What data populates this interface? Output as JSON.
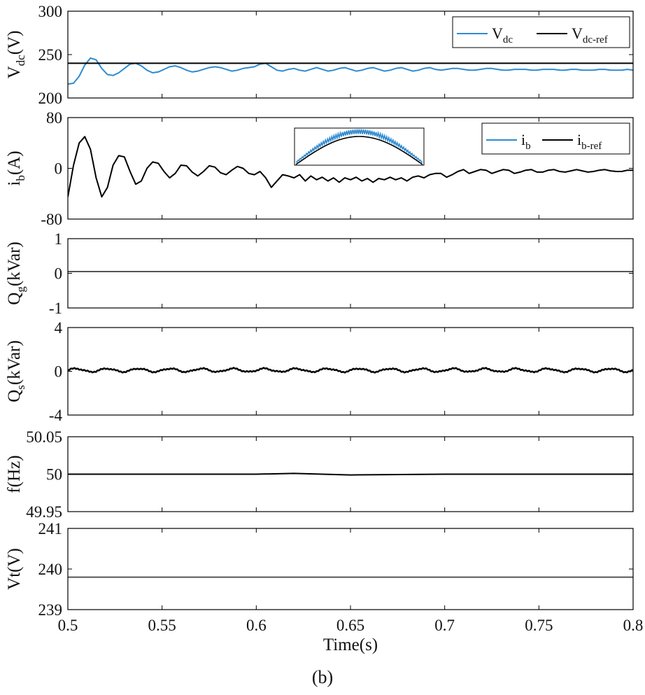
{
  "caption": "(b)",
  "colors": {
    "blue": "#2e8bd0",
    "black": "#000000",
    "gray": "#555555"
  },
  "x_axis": {
    "label": "Time(s)",
    "range": [
      0.5,
      0.8
    ],
    "ticks": [
      0.5,
      0.55,
      0.6,
      0.65,
      0.7,
      0.75,
      0.8
    ],
    "tick_labels": [
      "0.5",
      "0.55",
      "0.6",
      "0.65",
      "0.7",
      "0.75",
      "0.8"
    ]
  },
  "chart_data": [
    {
      "type": "line",
      "ylabel": {
        "main": "V",
        "sub": "dc",
        "unit": "(V)"
      },
      "ylim": [
        200,
        300
      ],
      "yticks": [
        "200",
        "250",
        "300"
      ],
      "legend": {
        "position": "top-right",
        "entries": [
          {
            "main": "V",
            "sub": "dc",
            "color": "#2e8bd0"
          },
          {
            "main": "V",
            "sub": "dc-ref",
            "color": "#000000"
          }
        ]
      },
      "series": [
        {
          "color": "#2e8bd0",
          "x": [
            0.5,
            0.503,
            0.506,
            0.509,
            0.512,
            0.515,
            0.518,
            0.521,
            0.524,
            0.527,
            0.53,
            0.533,
            0.536,
            0.539,
            0.542,
            0.545,
            0.548,
            0.551,
            0.554,
            0.557,
            0.56,
            0.563,
            0.566,
            0.569,
            0.572,
            0.575,
            0.578,
            0.581,
            0.584,
            0.587,
            0.59,
            0.593,
            0.596,
            0.599,
            0.602,
            0.605,
            0.608,
            0.611,
            0.614,
            0.617,
            0.62,
            0.623,
            0.626,
            0.629,
            0.632,
            0.635,
            0.638,
            0.641,
            0.644,
            0.647,
            0.65,
            0.653,
            0.656,
            0.659,
            0.662,
            0.665,
            0.668,
            0.671,
            0.674,
            0.677,
            0.68,
            0.683,
            0.686,
            0.689,
            0.692,
            0.695,
            0.698,
            0.701,
            0.704,
            0.707,
            0.71,
            0.713,
            0.716,
            0.719,
            0.722,
            0.725,
            0.728,
            0.731,
            0.734,
            0.737,
            0.74,
            0.743,
            0.746,
            0.749,
            0.752,
            0.755,
            0.758,
            0.761,
            0.764,
            0.767,
            0.77,
            0.773,
            0.776,
            0.779,
            0.782,
            0.785,
            0.788,
            0.791,
            0.794,
            0.797,
            0.8
          ],
          "y": [
            216,
            217,
            225,
            238,
            246,
            244,
            234,
            227,
            226,
            229,
            234,
            239,
            240,
            237,
            232,
            229,
            230,
            233,
            236,
            237,
            235,
            232,
            230,
            231,
            233,
            235,
            236,
            235,
            233,
            231,
            232,
            234,
            235,
            236,
            239,
            240,
            236,
            232,
            231,
            233,
            234,
            232,
            231,
            233,
            235,
            233,
            231,
            232,
            234,
            235,
            233,
            231,
            232,
            234,
            235,
            233,
            231,
            232,
            234,
            235,
            233,
            231,
            232,
            234,
            235,
            233,
            232,
            233,
            234,
            234,
            233,
            232,
            232,
            233,
            234,
            234,
            233,
            232,
            232,
            233,
            233,
            233,
            232,
            232,
            233,
            233,
            233,
            232,
            232,
            233,
            233,
            232,
            232,
            232,
            233,
            233,
            232,
            232,
            232,
            233,
            232
          ]
        },
        {
          "color": "#000000",
          "x": [
            0.5,
            0.8
          ],
          "y": [
            240,
            240
          ]
        }
      ]
    },
    {
      "type": "line",
      "ylabel": {
        "main": "i",
        "sub": "b",
        "unit": "(A)"
      },
      "ylim": [
        -80,
        80
      ],
      "yticks": [
        "-80",
        "0",
        "80"
      ],
      "legend": {
        "position": "top-right",
        "entries": [
          {
            "main": "i",
            "sub": "b",
            "color": "#2e8bd0"
          },
          {
            "main": "i",
            "sub": "b-ref",
            "color": "#000000"
          }
        ]
      },
      "series": [
        {
          "color": "#000000",
          "x": [
            0.5,
            0.503,
            0.506,
            0.509,
            0.512,
            0.515,
            0.518,
            0.521,
            0.524,
            0.527,
            0.53,
            0.533,
            0.536,
            0.539,
            0.542,
            0.545,
            0.548,
            0.551,
            0.554,
            0.557,
            0.56,
            0.563,
            0.566,
            0.569,
            0.572,
            0.575,
            0.578,
            0.581,
            0.584,
            0.587,
            0.59,
            0.593,
            0.596,
            0.599,
            0.602,
            0.605,
            0.608,
            0.611,
            0.614,
            0.617,
            0.62,
            0.623,
            0.626,
            0.629,
            0.632,
            0.635,
            0.638,
            0.641,
            0.644,
            0.647,
            0.65,
            0.653,
            0.656,
            0.659,
            0.662,
            0.665,
            0.668,
            0.671,
            0.674,
            0.677,
            0.68,
            0.683,
            0.686,
            0.689,
            0.692,
            0.695,
            0.698,
            0.701,
            0.704,
            0.707,
            0.71,
            0.713,
            0.716,
            0.719,
            0.722,
            0.725,
            0.728,
            0.731,
            0.734,
            0.737,
            0.74,
            0.743,
            0.746,
            0.749,
            0.752,
            0.755,
            0.758,
            0.761,
            0.764,
            0.767,
            0.77,
            0.773,
            0.776,
            0.779,
            0.782,
            0.785,
            0.788,
            0.791,
            0.794,
            0.797,
            0.8
          ],
          "y": [
            -45,
            5,
            40,
            50,
            30,
            -15,
            -45,
            -30,
            5,
            20,
            18,
            -5,
            -25,
            -20,
            0,
            10,
            8,
            -5,
            -15,
            -8,
            5,
            4,
            -6,
            -12,
            -5,
            4,
            2,
            -7,
            -10,
            -3,
            3,
            0,
            -8,
            -10,
            -5,
            -15,
            -30,
            -20,
            -10,
            -12,
            -15,
            -10,
            -20,
            -12,
            -18,
            -14,
            -20,
            -15,
            -22,
            -15,
            -18,
            -14,
            -20,
            -16,
            -22,
            -16,
            -18,
            -14,
            -18,
            -15,
            -20,
            -14,
            -12,
            -15,
            -10,
            -8,
            -8,
            -14,
            -10,
            -5,
            -2,
            -8,
            -5,
            -2,
            -3,
            -8,
            -5,
            -2,
            -3,
            -8,
            -6,
            -3,
            -2,
            -6,
            -6,
            -3,
            -2,
            -5,
            -6,
            -4,
            -2,
            -4,
            -6,
            -5,
            -3,
            -2,
            -4,
            -5,
            -5,
            -3,
            -3
          ]
        }
      ],
      "inset": {
        "description_series": [
          {
            "color": "#2e8bd0"
          },
          {
            "color": "#000000"
          }
        ]
      }
    },
    {
      "type": "line",
      "ylabel": {
        "main": "Q",
        "sub": "g",
        "unit": "(kVar)"
      },
      "ylim": [
        -1,
        1
      ],
      "yticks": [
        "-1",
        "0",
        "1"
      ],
      "series": [
        {
          "color": "#555555",
          "x": [
            0.5,
            0.8
          ],
          "y": [
            0.05,
            0.05
          ]
        }
      ]
    },
    {
      "type": "line",
      "ylabel": {
        "main": "Q",
        "sub": "s",
        "unit": "(kVar)"
      },
      "ylim": [
        -4,
        4
      ],
      "yticks": [
        "-4",
        "0",
        "4"
      ],
      "series": [
        {
          "color": "#000000",
          "oscillation": {
            "mean": 0.1,
            "amplitude": 0.15,
            "period": 0.0167
          },
          "x": [
            0.5,
            0.8
          ]
        }
      ]
    },
    {
      "type": "line",
      "ylabel": {
        "main": "f",
        "sub": "",
        "unit": "(Hz)"
      },
      "ylim": [
        49.95,
        50.05
      ],
      "yticks": [
        "49.95",
        "50",
        "50.05"
      ],
      "series": [
        {
          "color": "#000000",
          "x": [
            0.5,
            0.6,
            0.62,
            0.65,
            0.7,
            0.75,
            0.8
          ],
          "y": [
            50.0,
            50.0,
            50.001,
            49.999,
            50.0,
            50.0,
            50.0
          ]
        }
      ]
    },
    {
      "type": "line",
      "ylabel": {
        "main": "Vt",
        "sub": "",
        "unit": "(V)"
      },
      "ylim": [
        239,
        241
      ],
      "yticks": [
        "239",
        "240",
        "241"
      ],
      "series": [
        {
          "color": "#555555",
          "x": [
            0.5,
            0.8
          ],
          "y": [
            239.8,
            239.8
          ]
        }
      ]
    }
  ]
}
